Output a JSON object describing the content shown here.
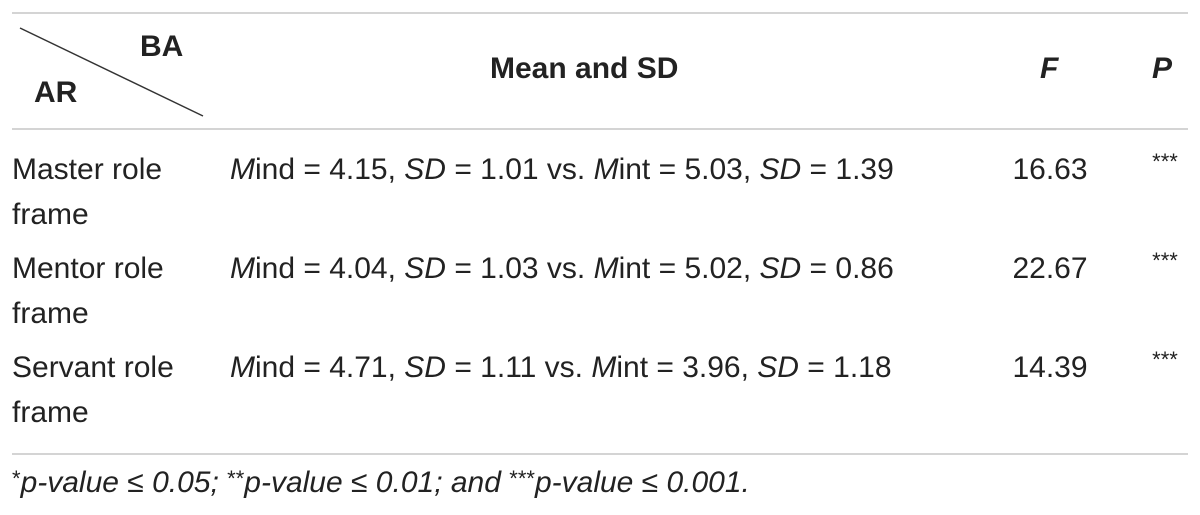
{
  "header": {
    "row_label": "AR",
    "col_label": "BA",
    "columns": [
      "Mean and SD",
      "F",
      "P"
    ]
  },
  "rows": [
    {
      "label": "Master role frame",
      "mean_sd": [
        {
          "text": "M",
          "italic": true
        },
        {
          "text": "ind = 4.15, "
        },
        {
          "text": "SD",
          "italic": true
        },
        {
          "text": " = 1.01 vs. "
        },
        {
          "text": "M",
          "italic": true
        },
        {
          "text": "int = 5.03, "
        },
        {
          "text": "SD",
          "italic": true
        },
        {
          "text": " = 1.39"
        }
      ],
      "F": 16.63,
      "P": "***"
    },
    {
      "label": "Mentor role frame",
      "mean_sd": [
        {
          "text": "M",
          "italic": true
        },
        {
          "text": "ind = 4.04, "
        },
        {
          "text": "SD",
          "italic": true
        },
        {
          "text": " = 1.03 vs. "
        },
        {
          "text": "M",
          "italic": true
        },
        {
          "text": "int = 5.02, "
        },
        {
          "text": "SD",
          "italic": true
        },
        {
          "text": " = 0.86"
        }
      ],
      "F": 22.67,
      "P": "***"
    },
    {
      "label": "Servant role frame",
      "mean_sd": [
        {
          "text": "M",
          "italic": true
        },
        {
          "text": "ind = 4.71, "
        },
        {
          "text": "SD",
          "italic": true
        },
        {
          "text": " = 1.11 vs. "
        },
        {
          "text": "M",
          "italic": true
        },
        {
          "text": "int = 3.96, "
        },
        {
          "text": "SD",
          "italic": true
        },
        {
          "text": " = 1.18"
        }
      ],
      "F": 14.39,
      "P": "***"
    }
  ],
  "footnote": [
    {
      "text": "*",
      "star": true
    },
    {
      "text": "p-value ≤ 0.05; ",
      "italic": true
    },
    {
      "text": "**",
      "star": true
    },
    {
      "text": "p-value ≤ 0.01; and ",
      "italic": true
    },
    {
      "text": "***",
      "star": true
    },
    {
      "text": "p-value ≤ 0.001.",
      "italic": true
    }
  ]
}
